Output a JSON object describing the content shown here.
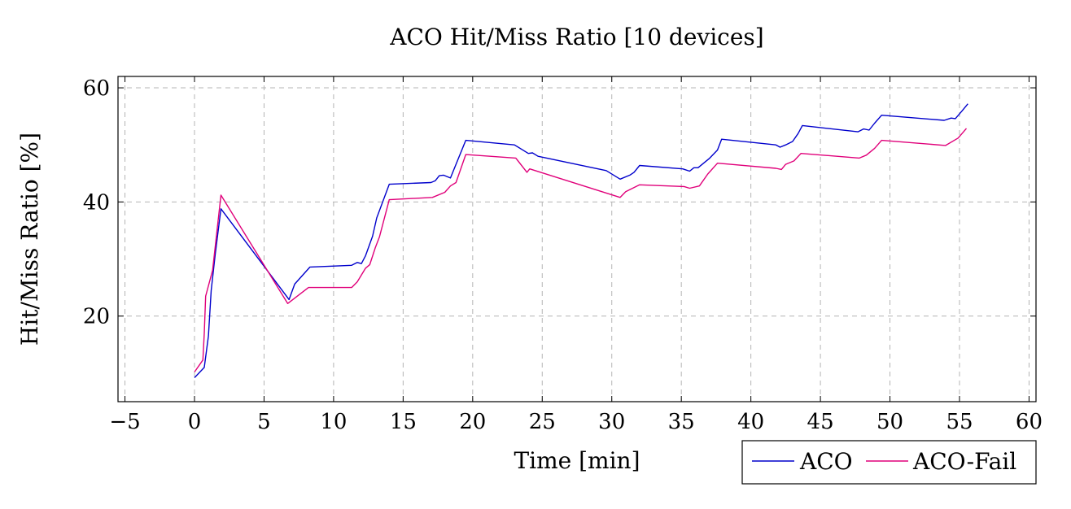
{
  "chart_data": {
    "type": "line",
    "title": "ACO Hit/Miss Ratio [10 devices]",
    "xlabel": "Time [min]",
    "ylabel": "Hit/Miss Ratio [%]",
    "xlim": [
      -5.5,
      60.5
    ],
    "ylim": [
      5,
      62
    ],
    "xticks": [
      -5,
      0,
      5,
      10,
      15,
      20,
      25,
      30,
      35,
      40,
      45,
      50,
      55,
      60
    ],
    "yticks": [
      20,
      40,
      60
    ],
    "xtick_labels": [
      "−5",
      "0",
      "5",
      "10",
      "15",
      "20",
      "25",
      "30",
      "35",
      "40",
      "45",
      "50",
      "55",
      "60"
    ],
    "ytick_labels": [
      "20",
      "40",
      "60"
    ],
    "grid": true,
    "legend_position": "below-right",
    "series": [
      {
        "name": "ACO",
        "color": "#0000cc",
        "points": [
          [
            0.0,
            9.2
          ],
          [
            0.7,
            11.0
          ],
          [
            1.0,
            16.5
          ],
          [
            1.2,
            24.5
          ],
          [
            1.5,
            31.0
          ],
          [
            1.9,
            38.8
          ],
          [
            6.8,
            22.9
          ],
          [
            7.2,
            25.6
          ],
          [
            8.3,
            28.6
          ],
          [
            11.3,
            28.9
          ],
          [
            11.7,
            29.4
          ],
          [
            12.0,
            29.2
          ],
          [
            12.3,
            30.6
          ],
          [
            12.8,
            34.0
          ],
          [
            13.1,
            37.2
          ],
          [
            14.0,
            43.1
          ],
          [
            17.0,
            43.4
          ],
          [
            17.3,
            43.7
          ],
          [
            17.6,
            44.6
          ],
          [
            17.9,
            44.7
          ],
          [
            18.4,
            44.2
          ],
          [
            19.5,
            50.8
          ],
          [
            23.0,
            50.0
          ],
          [
            24.0,
            48.5
          ],
          [
            24.3,
            48.6
          ],
          [
            24.7,
            48.0
          ],
          [
            29.6,
            45.5
          ],
          [
            30.6,
            44.0
          ],
          [
            31.3,
            44.7
          ],
          [
            31.6,
            45.2
          ],
          [
            32.0,
            46.4
          ],
          [
            35.1,
            45.8
          ],
          [
            35.6,
            45.4
          ],
          [
            35.9,
            46.0
          ],
          [
            36.2,
            46.0
          ],
          [
            37.0,
            47.6
          ],
          [
            37.6,
            49.1
          ],
          [
            37.9,
            51.0
          ],
          [
            41.8,
            50.0
          ],
          [
            42.1,
            49.6
          ],
          [
            42.5,
            50.0
          ],
          [
            43.0,
            50.6
          ],
          [
            43.4,
            52.0
          ],
          [
            43.7,
            53.4
          ],
          [
            47.7,
            52.3
          ],
          [
            48.1,
            52.8
          ],
          [
            48.5,
            52.6
          ],
          [
            48.9,
            53.8
          ],
          [
            49.4,
            55.2
          ],
          [
            53.9,
            54.3
          ],
          [
            54.4,
            54.7
          ],
          [
            54.7,
            54.6
          ],
          [
            55.2,
            56.0
          ],
          [
            55.6,
            57.2
          ]
        ]
      },
      {
        "name": "ACO-Fail",
        "color": "#e0007a",
        "points": [
          [
            0.0,
            10.2
          ],
          [
            0.6,
            12.3
          ],
          [
            0.7,
            17.0
          ],
          [
            0.8,
            23.5
          ],
          [
            1.3,
            28.0
          ],
          [
            1.9,
            41.2
          ],
          [
            6.7,
            22.2
          ],
          [
            8.2,
            25.0
          ],
          [
            11.3,
            25.0
          ],
          [
            11.7,
            26.0
          ],
          [
            12.3,
            28.4
          ],
          [
            12.6,
            29.0
          ],
          [
            13.0,
            32.0
          ],
          [
            13.3,
            33.9
          ],
          [
            14.0,
            40.4
          ],
          [
            17.1,
            40.8
          ],
          [
            18.0,
            41.7
          ],
          [
            18.4,
            42.8
          ],
          [
            18.8,
            43.4
          ],
          [
            19.5,
            48.3
          ],
          [
            23.1,
            47.7
          ],
          [
            23.9,
            45.2
          ],
          [
            24.1,
            45.8
          ],
          [
            30.6,
            40.8
          ],
          [
            31.0,
            41.8
          ],
          [
            32.0,
            43.0
          ],
          [
            35.2,
            42.7
          ],
          [
            35.6,
            42.4
          ],
          [
            36.3,
            42.8
          ],
          [
            36.9,
            44.9
          ],
          [
            37.6,
            46.8
          ],
          [
            41.8,
            45.9
          ],
          [
            42.2,
            45.7
          ],
          [
            42.5,
            46.6
          ],
          [
            43.1,
            47.2
          ],
          [
            43.6,
            48.5
          ],
          [
            47.8,
            47.7
          ],
          [
            48.3,
            48.2
          ],
          [
            48.9,
            49.4
          ],
          [
            49.4,
            50.8
          ],
          [
            54.0,
            49.9
          ],
          [
            54.9,
            51.2
          ],
          [
            55.5,
            52.9
          ]
        ]
      }
    ]
  }
}
